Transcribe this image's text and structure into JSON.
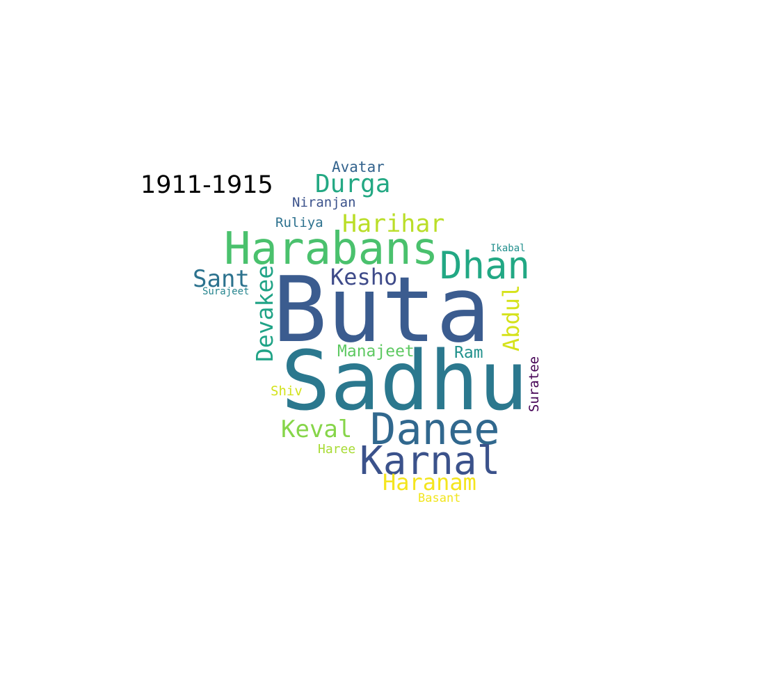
{
  "period_label": "1911-1915",
  "words": [
    {
      "text": "Buta",
      "color": "#3b5c8f"
    },
    {
      "text": "Sadhu",
      "color": "#2b788e"
    },
    {
      "text": "Harabans",
      "color": "#4ac16d"
    },
    {
      "text": "Danee",
      "color": "#31688e"
    },
    {
      "text": "Karnal",
      "color": "#3b528b"
    },
    {
      "text": "Dhan",
      "color": "#22a884"
    },
    {
      "text": "Durga",
      "color": "#23a883"
    },
    {
      "text": "Harihar",
      "color": "#bade28"
    },
    {
      "text": "Haranam",
      "color": "#f4e51e"
    },
    {
      "text": "Keval",
      "color": "#86d549"
    },
    {
      "text": "Sant",
      "color": "#2c728e"
    },
    {
      "text": "Kesho",
      "color": "#3e4a89"
    },
    {
      "text": "Devakee",
      "color": "#20a386"
    },
    {
      "text": "Abdul",
      "color": "#d5e21a"
    },
    {
      "text": "Manajeet",
      "color": "#5ec962"
    },
    {
      "text": "Ram",
      "color": "#21918c"
    },
    {
      "text": "Avatar",
      "color": "#33638d"
    },
    {
      "text": "Niranjan",
      "color": "#3b528b"
    },
    {
      "text": "Ruliya",
      "color": "#2c718e"
    },
    {
      "text": "Ikabal",
      "color": "#218f8d"
    },
    {
      "text": "Surajeet",
      "color": "#25848e"
    },
    {
      "text": "Shiv",
      "color": "#d2e21b"
    },
    {
      "text": "Haree",
      "color": "#a8db34"
    },
    {
      "text": "Basant",
      "color": "#f1e51d"
    },
    {
      "text": "Suratee",
      "color": "#440154"
    }
  ]
}
